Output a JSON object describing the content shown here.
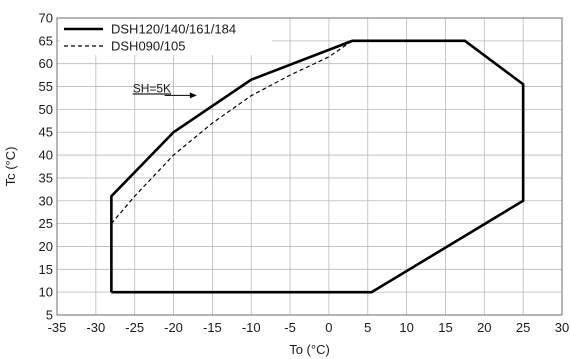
{
  "chart_data": {
    "type": "line",
    "xlabel": "To (°C)",
    "ylabel": "Tc (°C)",
    "xlim": [
      -35,
      30
    ],
    "ylim": [
      5,
      70
    ],
    "xticks": [
      -35,
      -30,
      -25,
      -20,
      -15,
      -10,
      -5,
      0,
      5,
      10,
      15,
      20,
      25,
      30
    ],
    "yticks": [
      5,
      10,
      15,
      20,
      25,
      30,
      35,
      40,
      45,
      50,
      55,
      60,
      65,
      70
    ],
    "xtick_labels": [
      "-35",
      "-30",
      "-25",
      "-20",
      "-15",
      "-10",
      "-5",
      "0",
      "5",
      "10",
      "15",
      "20",
      "25",
      "30"
    ],
    "ytick_labels": [
      "5",
      "10",
      "15",
      "20",
      "25",
      "30",
      "35",
      "40",
      "45",
      "50",
      "55",
      "60",
      "65",
      "70"
    ],
    "grid": true,
    "legend_position": "top-left",
    "series": [
      {
        "name": "DSH120/140/161/184",
        "style": "solid",
        "color": "#000000",
        "points": [
          {
            "x": -28,
            "y": 10
          },
          {
            "x": -28,
            "y": 31
          },
          {
            "x": -20,
            "y": 45
          },
          {
            "x": -10,
            "y": 56.5
          },
          {
            "x": 3,
            "y": 65
          },
          {
            "x": 17.5,
            "y": 65
          },
          {
            "x": 25,
            "y": 55.5
          },
          {
            "x": 25,
            "y": 30
          },
          {
            "x": 5.5,
            "y": 10
          },
          {
            "x": -28,
            "y": 10
          }
        ]
      },
      {
        "name": "DSH090/105",
        "style": "dashed",
        "color": "#000000",
        "points": [
          {
            "x": -28,
            "y": 25
          },
          {
            "x": -25,
            "y": 31
          },
          {
            "x": -20,
            "y": 40
          },
          {
            "x": -15,
            "y": 47
          },
          {
            "x": -10,
            "y": 53
          },
          {
            "x": -5,
            "y": 57.5
          },
          {
            "x": 0,
            "y": 61.5
          },
          {
            "x": 3,
            "y": 65
          }
        ]
      }
    ],
    "annotations": [
      {
        "text": "SH=5K",
        "x": -25,
        "y": 53.5,
        "arrow_to": {
          "x": -17,
          "y": 53.5
        }
      }
    ]
  }
}
